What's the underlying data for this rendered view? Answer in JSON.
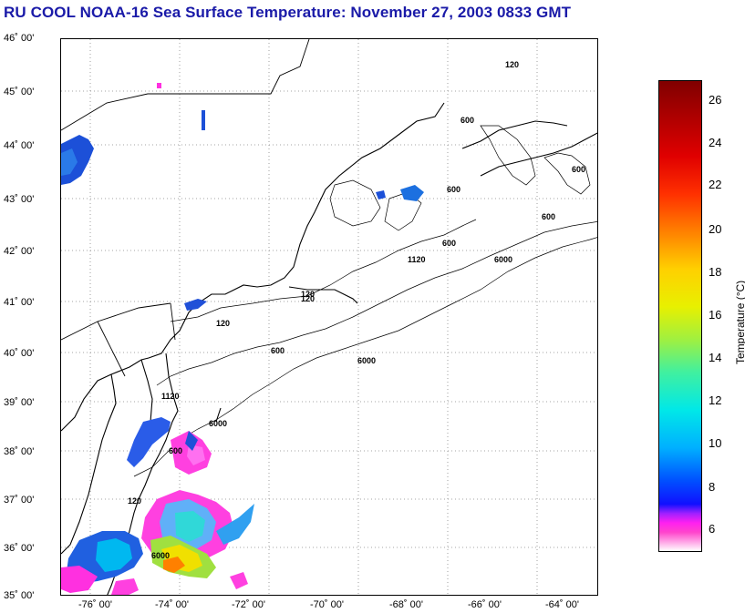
{
  "title": "RU COOL  NOAA-16  Sea Surface Temperature:  November 27, 2003 0833 GMT",
  "map": {
    "lat_labels": [
      "46˚ 00'",
      "45˚ 00'",
      "44˚ 00'",
      "43˚ 00'",
      "42˚ 00'",
      "41˚ 00'",
      "40˚ 00'",
      "39˚ 00'",
      "38˚ 00'",
      "37˚ 00'",
      "36˚ 00'",
      "35˚ 00'"
    ],
    "lon_labels": [
      "-76˚ 00'",
      "-74˚ 00'",
      "-72˚ 00'",
      "-70˚ 00'",
      "-68˚ 00'",
      "-66˚ 00'",
      "-64˚ 00'"
    ],
    "contour_labels": [
      "120",
      "120",
      "600",
      "600",
      "600",
      "600",
      "6000",
      "600",
      "1120",
      "120",
      "120",
      "600",
      "6000",
      "1120",
      "6000",
      "600",
      "120",
      "6000"
    ]
  },
  "colorbar": {
    "title": "Temperature (°C)",
    "ticks": [
      "26",
      "24",
      "22",
      "20",
      "18",
      "16",
      "14",
      "12",
      "10",
      "8",
      "6"
    ]
  }
}
